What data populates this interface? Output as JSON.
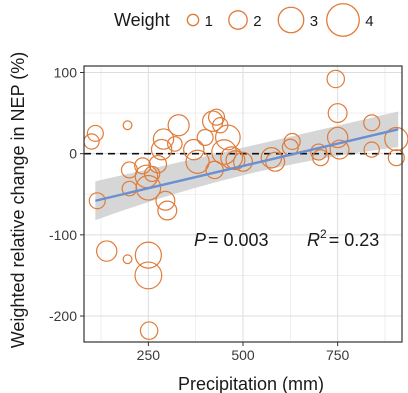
{
  "chart_data": {
    "type": "scatter",
    "xlabel": "Precipitation (mm)",
    "ylabel": "Weighted relative change in NEP (%)",
    "xlim": [
      80,
      920
    ],
    "ylim": [
      -232,
      108
    ],
    "x_ticks": [
      250,
      500,
      750
    ],
    "y_ticks": [
      -200,
      -100,
      0,
      100
    ],
    "grid": true,
    "zero_line": "dashed",
    "legend": {
      "title": "Weight",
      "placement": "top",
      "sizes": [
        1,
        2,
        3,
        4
      ],
      "labels": [
        "1",
        "2",
        "3",
        "4"
      ]
    },
    "colors": {
      "points": "#E07B39",
      "fit_line": "#6B8FCF",
      "confidence_band": "#cfcfcf",
      "grid": "#e6e6e6",
      "panel_border": "#333333"
    },
    "fit": {
      "x_range": [
        110,
        910
      ],
      "y_range": [
        -58,
        30
      ],
      "ci_start": [
        -82,
        -34
      ],
      "ci_mid": [
        -12,
        8
      ],
      "ci_end": [
        8,
        52
      ]
    },
    "annotations": {
      "p_symbol": "P",
      "p_value": "= 0.003",
      "r_symbol": "R",
      "r_sup": "2",
      "r_value": "= 0.23"
    },
    "points": [
      {
        "x": 100,
        "y": 15,
        "w": 1.5
      },
      {
        "x": 110,
        "y": 25,
        "w": 1.6
      },
      {
        "x": 115,
        "y": -58,
        "w": 1.6
      },
      {
        "x": 140,
        "y": -120,
        "w": 2.2
      },
      {
        "x": 195,
        "y": 35,
        "w": 0.6
      },
      {
        "x": 195,
        "y": -130,
        "w": 0.6
      },
      {
        "x": 200,
        "y": -20,
        "w": 1.6
      },
      {
        "x": 200,
        "y": -43,
        "w": 1.4
      },
      {
        "x": 235,
        "y": -15,
        "w": 1.6
      },
      {
        "x": 245,
        "y": -28,
        "w": 2.5
      },
      {
        "x": 250,
        "y": -42,
        "w": 2.8
      },
      {
        "x": 250,
        "y": -125,
        "w": 3.0
      },
      {
        "x": 250,
        "y": -150,
        "w": 3.1
      },
      {
        "x": 252,
        "y": -218,
        "w": 1.8
      },
      {
        "x": 260,
        "y": -25,
        "w": 1.5
      },
      {
        "x": 275,
        "y": -13,
        "w": 1.8
      },
      {
        "x": 285,
        "y": 5,
        "w": 2.2
      },
      {
        "x": 290,
        "y": 18,
        "w": 2.2
      },
      {
        "x": 295,
        "y": -58,
        "w": 2.0
      },
      {
        "x": 300,
        "y": -70,
        "w": 2.0
      },
      {
        "x": 320,
        "y": 12,
        "w": 1.4
      },
      {
        "x": 330,
        "y": 35,
        "w": 2.3
      },
      {
        "x": 370,
        "y": 5,
        "w": 2.2
      },
      {
        "x": 380,
        "y": -10,
        "w": 2.6
      },
      {
        "x": 400,
        "y": 20,
        "w": 1.6
      },
      {
        "x": 420,
        "y": 40,
        "w": 2.2
      },
      {
        "x": 425,
        "y": -20,
        "w": 1.8
      },
      {
        "x": 430,
        "y": 45,
        "w": 1.6
      },
      {
        "x": 440,
        "y": 35,
        "w": 1.5
      },
      {
        "x": 450,
        "y": 2,
        "w": 2.8
      },
      {
        "x": 460,
        "y": 20,
        "w": 2.8
      },
      {
        "x": 470,
        "y": -5,
        "w": 2.4
      },
      {
        "x": 480,
        "y": -8,
        "w": 2.0
      },
      {
        "x": 500,
        "y": -10,
        "w": 2.0
      },
      {
        "x": 575,
        "y": -5,
        "w": 2.2
      },
      {
        "x": 585,
        "y": -10,
        "w": 2.0
      },
      {
        "x": 625,
        "y": 8,
        "w": 1.6
      },
      {
        "x": 630,
        "y": 15,
        "w": 1.6
      },
      {
        "x": 700,
        "y": 2,
        "w": 1.6
      },
      {
        "x": 705,
        "y": -5,
        "w": 1.6
      },
      {
        "x": 745,
        "y": 92,
        "w": 1.8
      },
      {
        "x": 750,
        "y": 50,
        "w": 2.0
      },
      {
        "x": 750,
        "y": 20,
        "w": 2.2
      },
      {
        "x": 755,
        "y": 5,
        "w": 2.0
      },
      {
        "x": 840,
        "y": 38,
        "w": 1.6
      },
      {
        "x": 840,
        "y": 5,
        "w": 1.5
      },
      {
        "x": 905,
        "y": 18,
        "w": 2.6
      },
      {
        "x": 905,
        "y": -5,
        "w": 1.6
      }
    ]
  }
}
